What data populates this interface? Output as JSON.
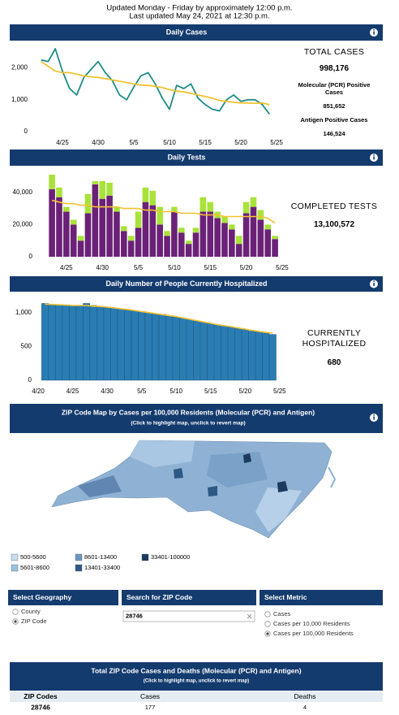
{
  "header": {
    "line1": "Updated Monday - Friday by approximately 12:00 p.m.",
    "line2": "Last updated May 24, 2021 at 12:30 p.m."
  },
  "chart_data": [
    {
      "type": "line",
      "title": "Daily Cases",
      "categories": [
        null,
        null,
        null,
        null,
        null,
        "4/25",
        null,
        null,
        null,
        null,
        "4/30",
        null,
        null,
        null,
        null,
        "5/5",
        null,
        null,
        null,
        null,
        "5/10",
        null,
        null,
        null,
        null,
        "5/15",
        null,
        null,
        null,
        null,
        "5/20",
        null,
        null,
        null,
        null,
        "5/25"
      ],
      "series": [
        {
          "color": "#1f8c88",
          "values": [
            null,
            null,
            2250,
            2200,
            2600,
            1900,
            1350,
            1150,
            1700,
            1950,
            2200,
            1850,
            1600,
            1150,
            1000,
            1400,
            1750,
            1850,
            1500,
            1050,
            700,
            1450,
            1350,
            1500,
            1050,
            850,
            700,
            650,
            1000,
            1150,
            950,
            1000,
            1000,
            850,
            550,
            null
          ]
        },
        {
          "color": "#f2c230",
          "values": [
            null,
            null,
            2200,
            2050,
            1900,
            1850,
            1850,
            1800,
            1750,
            1720,
            1700,
            1660,
            1620,
            1580,
            1540,
            1500,
            1460,
            1450,
            1420,
            1380,
            1320,
            1270,
            1250,
            1200,
            1150,
            1100,
            1050,
            980,
            950,
            920,
            900,
            900,
            890,
            900,
            850,
            null
          ]
        }
      ],
      "ylim": [
        0,
        2600
      ],
      "yticks": [
        0,
        {
          "value": 1000,
          "label": "1,000"
        },
        {
          "value": 2000,
          "label": "2,000"
        }
      ],
      "grid": false,
      "stats": [
        {
          "label": "TOTAL CASES",
          "value": "998,176"
        },
        {
          "label": "Molecular (PCR) Positive Cases",
          "value": "851,652"
        },
        {
          "label": "Antigen Positive Cases",
          "value": "146,524"
        }
      ]
    },
    {
      "type": "bar",
      "stacked": true,
      "title": "Daily Tests",
      "categories": [
        null,
        null,
        null,
        null,
        null,
        "4/25",
        null,
        null,
        null,
        null,
        "4/30",
        null,
        null,
        null,
        null,
        "5/5",
        null,
        null,
        null,
        null,
        "5/10",
        null,
        null,
        null,
        null,
        "5/15",
        null,
        null,
        null,
        null,
        "5/20",
        null,
        null,
        null,
        null,
        "5/25"
      ],
      "series": [
        {
          "color": "#6b2177",
          "values": [
            null,
            null,
            null,
            42000,
            37000,
            28000,
            20000,
            10000,
            27000,
            45000,
            36000,
            38000,
            28000,
            16000,
            10000,
            18000,
            34000,
            32000,
            20000,
            13000,
            28000,
            15000,
            8000,
            15000,
            28000,
            28000,
            24000,
            21000,
            17000,
            8000,
            27000,
            31000,
            23000,
            17000,
            11000,
            null
          ]
        },
        {
          "color": "#a9e23a",
          "values": [
            null,
            null,
            null,
            9000,
            6000,
            3000,
            3000,
            3000,
            12000,
            2000,
            11000,
            8000,
            3000,
            3000,
            3000,
            10000,
            9000,
            9000,
            11000,
            3000,
            3000,
            3000,
            2000,
            3000,
            9000,
            6000,
            4000,
            4000,
            3000,
            5000,
            7000,
            6000,
            6000,
            3000,
            2000,
            null
          ]
        },
        {
          "color": "#f2c230",
          "type": "line",
          "values": [
            null,
            null,
            null,
            35000,
            34000,
            33000,
            33000,
            32000,
            32000,
            31000,
            31000,
            31000,
            31000,
            30000,
            30000,
            30000,
            29000,
            29000,
            28000,
            28000,
            28000,
            27000,
            27000,
            27000,
            26000,
            26000,
            26000,
            25000,
            25000,
            25000,
            25000,
            25000,
            25000,
            24000,
            21000,
            null
          ]
        }
      ],
      "ylim": [
        0,
        52000
      ],
      "yticks": [
        0,
        {
          "value": 20000,
          "label": "20,000"
        },
        {
          "value": 40000,
          "label": "40,000"
        }
      ],
      "grid": false,
      "stats": [
        {
          "label": "COMPLETED TESTS",
          "value": "13,100,572"
        }
      ]
    },
    {
      "type": "bar",
      "title": "Daily Number of People Currently Hospitalized",
      "categories": [
        "4/20",
        null,
        null,
        null,
        null,
        "4/25",
        null,
        null,
        null,
        null,
        "4/30",
        null,
        null,
        null,
        null,
        "5/5",
        null,
        null,
        null,
        null,
        "5/10",
        null,
        null,
        null,
        null,
        "5/15",
        null,
        null,
        null,
        null,
        "5/20",
        null,
        null,
        null,
        null,
        "5/25"
      ],
      "series": [
        {
          "color": "#2a7db3",
          "values": [
            null,
            1140,
            1130,
            1125,
            1120,
            1110,
            1100,
            1140,
            1110,
            1090,
            1080,
            1070,
            1060,
            1040,
            1030,
            1020,
            1000,
            990,
            980,
            960,
            940,
            920,
            900,
            880,
            860,
            840,
            820,
            800,
            790,
            770,
            750,
            730,
            720,
            700,
            680,
            null
          ]
        },
        {
          "color": "#f2c230",
          "type": "line",
          "values": [
            null,
            1130,
            1125,
            1120,
            1115,
            1110,
            1110,
            1110,
            1100,
            1095,
            1085,
            1075,
            1060,
            1050,
            1035,
            1020,
            1005,
            990,
            975,
            960,
            945,
            925,
            905,
            885,
            865,
            845,
            825,
            810,
            795,
            775,
            760,
            740,
            725,
            710,
            700,
            null
          ]
        }
      ],
      "ylim": [
        0,
        1200
      ],
      "yticks": [
        0,
        500,
        {
          "value": 1000,
          "label": "1,000"
        }
      ],
      "grid": false,
      "stats": [
        {
          "label": "CURRENTLY HOSPITALIZED",
          "value": "680"
        }
      ]
    }
  ],
  "map": {
    "title": "ZIP Code Map by Cases per 100,000 Residents (Molecular (PCR) and Antigen)",
    "subtitle": "(Click to highlight map, unclick to revert map)",
    "legend": [
      {
        "label": "500-5600",
        "color": "#c8dcee"
      },
      {
        "label": "5601-8600",
        "color": "#9cc1de"
      },
      {
        "label": "8601-13400",
        "color": "#6c95bd"
      },
      {
        "label": "13401-33400",
        "color": "#2e5885"
      },
      {
        "label": "33401-100000",
        "color": "#1c3a5e"
      }
    ]
  },
  "controls": {
    "geography": {
      "title": "Select Geography",
      "options": [
        "County",
        "ZIP Code"
      ],
      "selected": 1
    },
    "search": {
      "title": "Search for ZIP Code",
      "value": "28746"
    },
    "metric": {
      "title": "Select Metric",
      "options": [
        "Cases",
        "Cases per 10,000 Residents",
        "Cases per 100,000 Residents"
      ],
      "selected": 2
    }
  },
  "table": {
    "title": "Total ZIP Code Cases and Deaths (Molecular (PCR) and Antigen)",
    "subtitle": "(Click to highlight map, unclick to revert map)",
    "columns": [
      "ZIP Codes",
      "Cases",
      "Deaths"
    ],
    "rows": [
      [
        "28746",
        "177",
        "4"
      ]
    ]
  }
}
